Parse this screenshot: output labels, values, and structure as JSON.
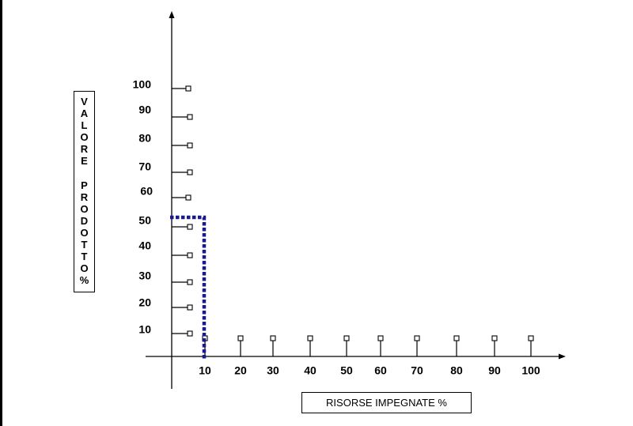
{
  "diagram": {
    "y_axis_title": "VALORE PRODOTTO%",
    "x_axis_title": "RISORSE IMPEGNATE %",
    "y_ticks": [
      "10",
      "20",
      "30",
      "40",
      "50",
      "60",
      "70",
      "80",
      "90",
      "100"
    ],
    "x_ticks": [
      "10",
      "20",
      "30",
      "40",
      "50",
      "60",
      "70",
      "80",
      "90",
      "100"
    ],
    "highlight": {
      "x": 10,
      "y": 50,
      "color": "#1a1a8c",
      "style": "dotted"
    }
  }
}
